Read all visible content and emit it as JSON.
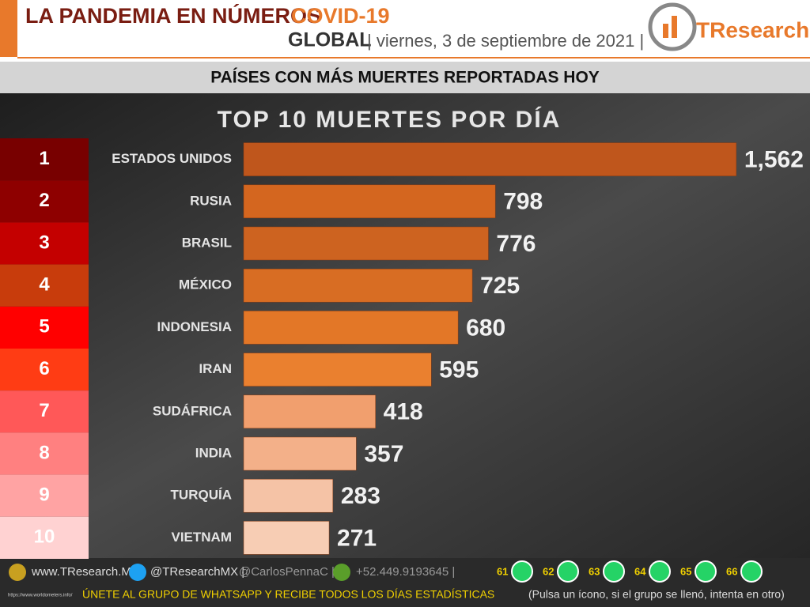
{
  "header": {
    "title": "LA PANDEMIA EN NÚMEROS",
    "title_highlight": "COVID-19",
    "scope": "GLOBAL",
    "date": "| viernes, 3 de septiembre de 2021 |",
    "logo": "TResearch"
  },
  "subtitle": "PAÍSES CON MÁS MUERTES REPORTADAS HOY",
  "chart_data": {
    "type": "bar",
    "orientation": "horizontal",
    "title": "TOP 10 MUERTES POR DÍA",
    "ranks": [
      1,
      2,
      3,
      4,
      5,
      6,
      7,
      8,
      9,
      10
    ],
    "rank_colors": [
      "#780000",
      "#8e0000",
      "#c40000",
      "#c83c0c",
      "#ff0000",
      "#ff3c14",
      "#ff5858",
      "#ff8080",
      "#ffa3a3",
      "#ffd2d2"
    ],
    "categories": [
      "ESTADOS UNIDOS",
      "RUSIA",
      "BRASIL",
      "MÉXICO",
      "INDONESIA",
      "IRAN",
      "SUDÁFRICA",
      "INDIA",
      "TURQUÍA",
      "VIETNAM"
    ],
    "values": [
      1562,
      798,
      776,
      725,
      680,
      595,
      418,
      357,
      283,
      271
    ],
    "value_labels": [
      "1,562",
      "798",
      "776",
      "725",
      "680",
      "595",
      "418",
      "357",
      "283",
      "271"
    ],
    "colors": [
      "#bf561c",
      "#d4661f",
      "#cd6320",
      "#d86d23",
      "#e37727",
      "#ea802f",
      "#f19f6e",
      "#f3b089",
      "#f5c3a6",
      "#f7cdb4"
    ],
    "xlim": [
      0,
      1600
    ]
  },
  "footer": {
    "web": "www.TResearch.Mx |",
    "twitter": "@TResearchMX |",
    "twitter2": "@CarlosPennaC |",
    "phone": "+52.449.9193645 |",
    "groups": [
      "61",
      "62",
      "63",
      "64",
      "65",
      "66"
    ],
    "cta": "ÚNETE AL GRUPO DE WHATSAPP Y RECIBE TODOS LOS DÍAS ESTADÍSTICAS",
    "cta_note": "(Pulsa un ícono, si el grupo se llenó, intenta en otro)",
    "source": "https://www.worldometers.info/"
  }
}
